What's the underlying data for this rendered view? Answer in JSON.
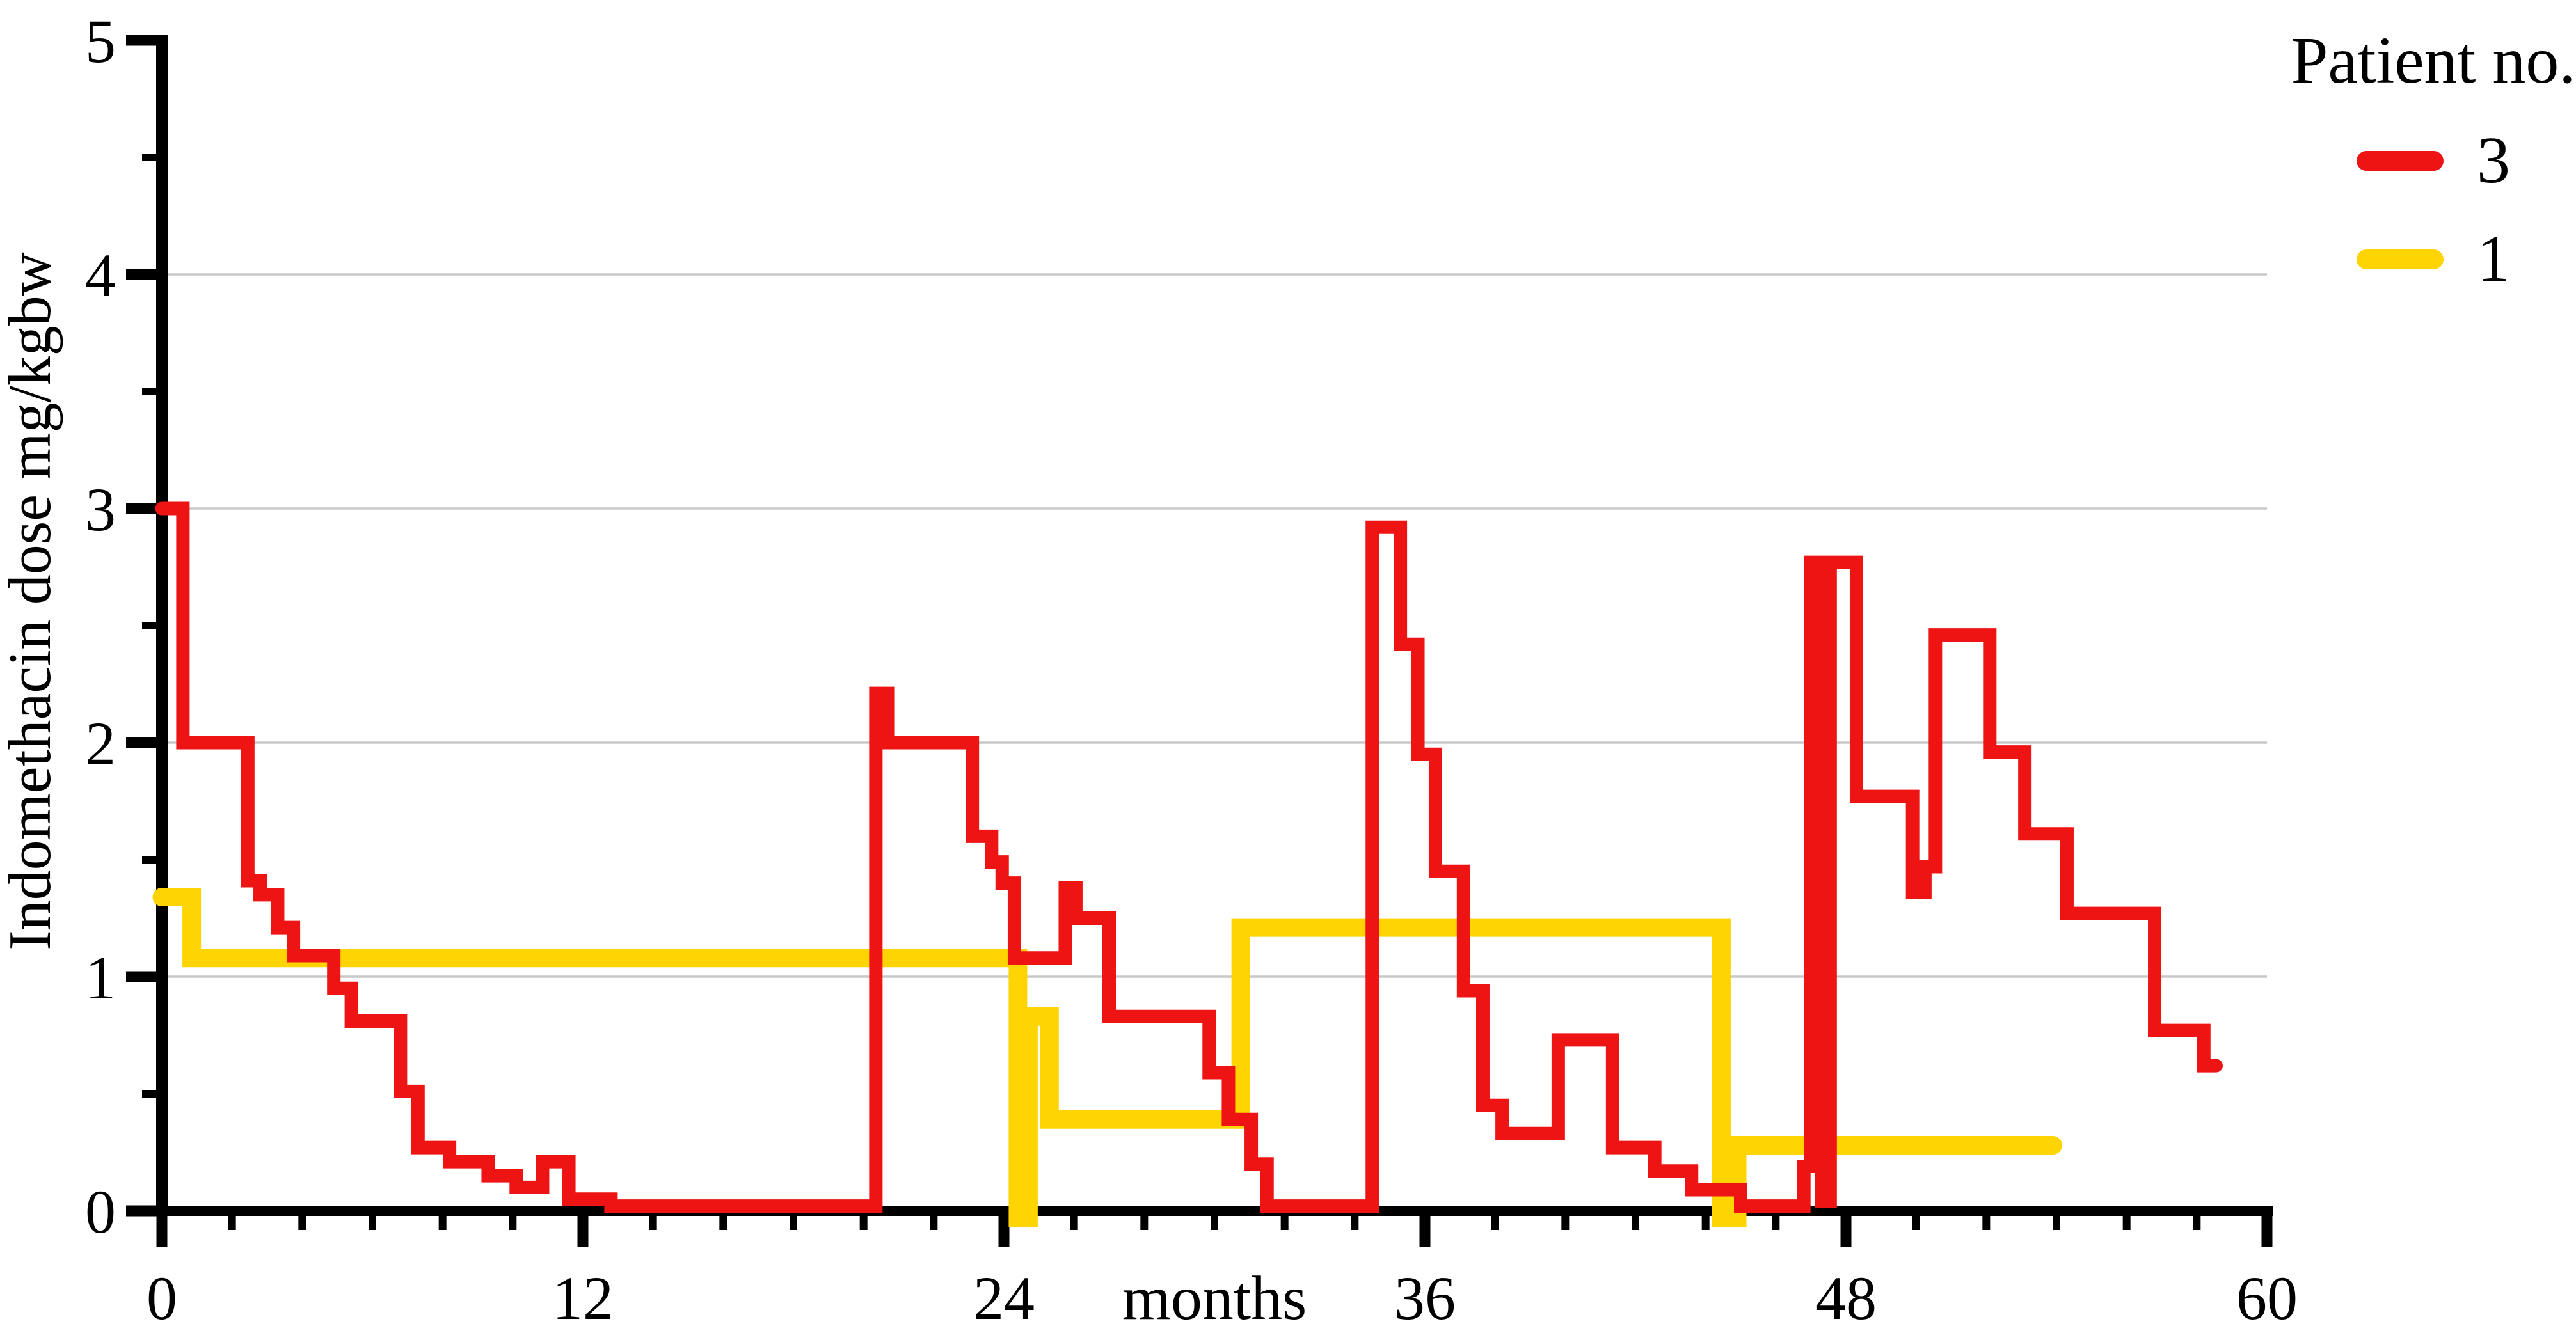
{
  "chart_data": {
    "type": "line",
    "subtype": "step-post",
    "title": "",
    "xlabel": "months",
    "ylabel": "Indomethacin  dose mg/kgbw",
    "xlim": [
      0,
      60
    ],
    "ylim": [
      0,
      5
    ],
    "x_major_ticks": [
      0,
      12,
      24,
      36,
      48,
      60
    ],
    "x_minor_step": 2,
    "y_major_ticks": [
      0,
      1,
      2,
      3,
      4,
      5
    ],
    "y_minor_step": 0.5,
    "gridlines_y": [
      1,
      2,
      3,
      4
    ],
    "grid_color": "#c8c8c8",
    "axis_color": "#000000",
    "legend": {
      "title": "Patient no.",
      "position": "top-right",
      "entries": [
        {
          "label": "1",
          "color": "#ee1414"
        },
        {
          "label": "3",
          "color": "#ffd400"
        }
      ]
    },
    "series": [
      {
        "name": "Patient 3",
        "legend_label": "3",
        "color": "#ffd400",
        "stroke_width": 29,
        "end_x": 53.9,
        "points": [
          [
            0,
            1.34
          ],
          [
            0.85,
            1.08
          ],
          [
            24.4,
            -0.03
          ],
          [
            24.7,
            0.83
          ],
          [
            25.3,
            0.39
          ],
          [
            30.75,
            1.21
          ],
          [
            44.45,
            -0.03
          ],
          [
            44.9,
            0.28
          ]
        ]
      },
      {
        "name": "Patient 1",
        "legend_label": "1",
        "color": "#ee1414",
        "stroke_width": 21,
        "end_x": 58.55,
        "points": [
          [
            0,
            3.0
          ],
          [
            0.6,
            2.0
          ],
          [
            2.45,
            1.41
          ],
          [
            2.8,
            1.35
          ],
          [
            3.3,
            1.21
          ],
          [
            3.75,
            1.09
          ],
          [
            4.9,
            0.95
          ],
          [
            5.4,
            0.81
          ],
          [
            6.8,
            0.51
          ],
          [
            7.3,
            0.27
          ],
          [
            8.2,
            0.21
          ],
          [
            9.3,
            0.15
          ],
          [
            10.1,
            0.1
          ],
          [
            10.85,
            0.21
          ],
          [
            11.6,
            0.05
          ],
          [
            12.8,
            0.02
          ],
          [
            20.35,
            2.21
          ],
          [
            20.7,
            2.0
          ],
          [
            23.1,
            1.6
          ],
          [
            23.65,
            1.49
          ],
          [
            23.95,
            1.4
          ],
          [
            24.3,
            1.08
          ],
          [
            25.75,
            1.38
          ],
          [
            26.05,
            1.25
          ],
          [
            27.0,
            0.83
          ],
          [
            29.85,
            0.59
          ],
          [
            30.4,
            0.39
          ],
          [
            31.05,
            0.2
          ],
          [
            31.5,
            0.02
          ],
          [
            34.5,
            2.92
          ],
          [
            35.3,
            2.42
          ],
          [
            35.8,
            1.95
          ],
          [
            36.3,
            1.45
          ],
          [
            37.1,
            0.94
          ],
          [
            37.65,
            0.45
          ],
          [
            38.2,
            0.33
          ],
          [
            39.8,
            0.73
          ],
          [
            41.35,
            0.27
          ],
          [
            42.55,
            0.17
          ],
          [
            43.6,
            0.09
          ],
          [
            45.0,
            0.02
          ],
          [
            46.8,
            0.19
          ],
          [
            47.0,
            2.77
          ],
          [
            47.3,
            0.04
          ],
          [
            47.55,
            2.77
          ],
          [
            48.3,
            1.77
          ],
          [
            49.9,
            1.36
          ],
          [
            50.25,
            1.47
          ],
          [
            50.55,
            2.46
          ],
          [
            52.1,
            1.96
          ],
          [
            53.1,
            1.61
          ],
          [
            54.3,
            1.27
          ],
          [
            56.8,
            0.77
          ],
          [
            58.2,
            0.62
          ]
        ]
      }
    ]
  }
}
